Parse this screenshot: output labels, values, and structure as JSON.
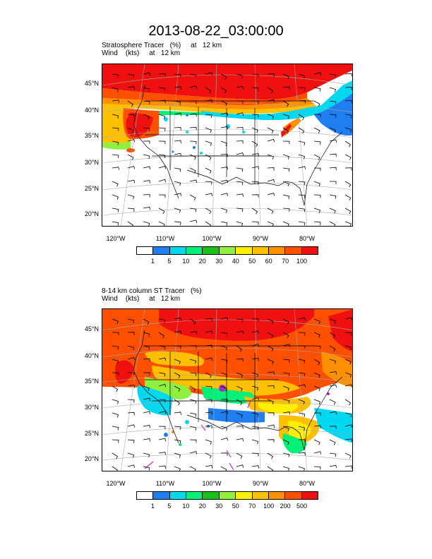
{
  "title": "2013-08-22_03:00:00",
  "panels": [
    {
      "label_line1": "Stratosphere Tracer   (%)     at   12 km",
      "label_line2": "Wind    (kts)     at   12 km",
      "lat_labels": [
        "45°N",
        "40°N",
        "35°N",
        "30°N",
        "25°N",
        "20°N"
      ],
      "lon_labels": [
        "120°W",
        "110°W",
        "100°W",
        "90°W",
        "80°W"
      ],
      "colorbar": {
        "colors": [
          "#ffffff",
          "#1f7ff0",
          "#00d8f0",
          "#00f078",
          "#18c018",
          "#90f040",
          "#fff000",
          "#ffc000",
          "#ff9000",
          "#ff5000",
          "#f01010"
        ],
        "labels": [
          "1",
          "5",
          "10",
          "20",
          "30",
          "40",
          "50",
          "60",
          "70",
          "100"
        ]
      }
    },
    {
      "label_line1": "8-14 km column ST Tracer   (%)",
      "label_line2": "Wind    (kts)     at   12 km",
      "lat_labels": [
        "45°N",
        "40°N",
        "35°N",
        "30°N",
        "25°N",
        "20°N"
      ],
      "lon_labels": [
        "120°W",
        "110°W",
        "100°W",
        "90°W",
        "80°W"
      ],
      "colorbar": {
        "colors": [
          "#ffffff",
          "#1f7ff0",
          "#00d8f0",
          "#00f078",
          "#18c018",
          "#90f040",
          "#fff000",
          "#ffc000",
          "#ff9000",
          "#ff5000",
          "#f01010"
        ],
        "labels": [
          "1",
          "5",
          "10",
          "20",
          "30",
          "50",
          "70",
          "100",
          "200",
          "500"
        ]
      }
    }
  ]
}
